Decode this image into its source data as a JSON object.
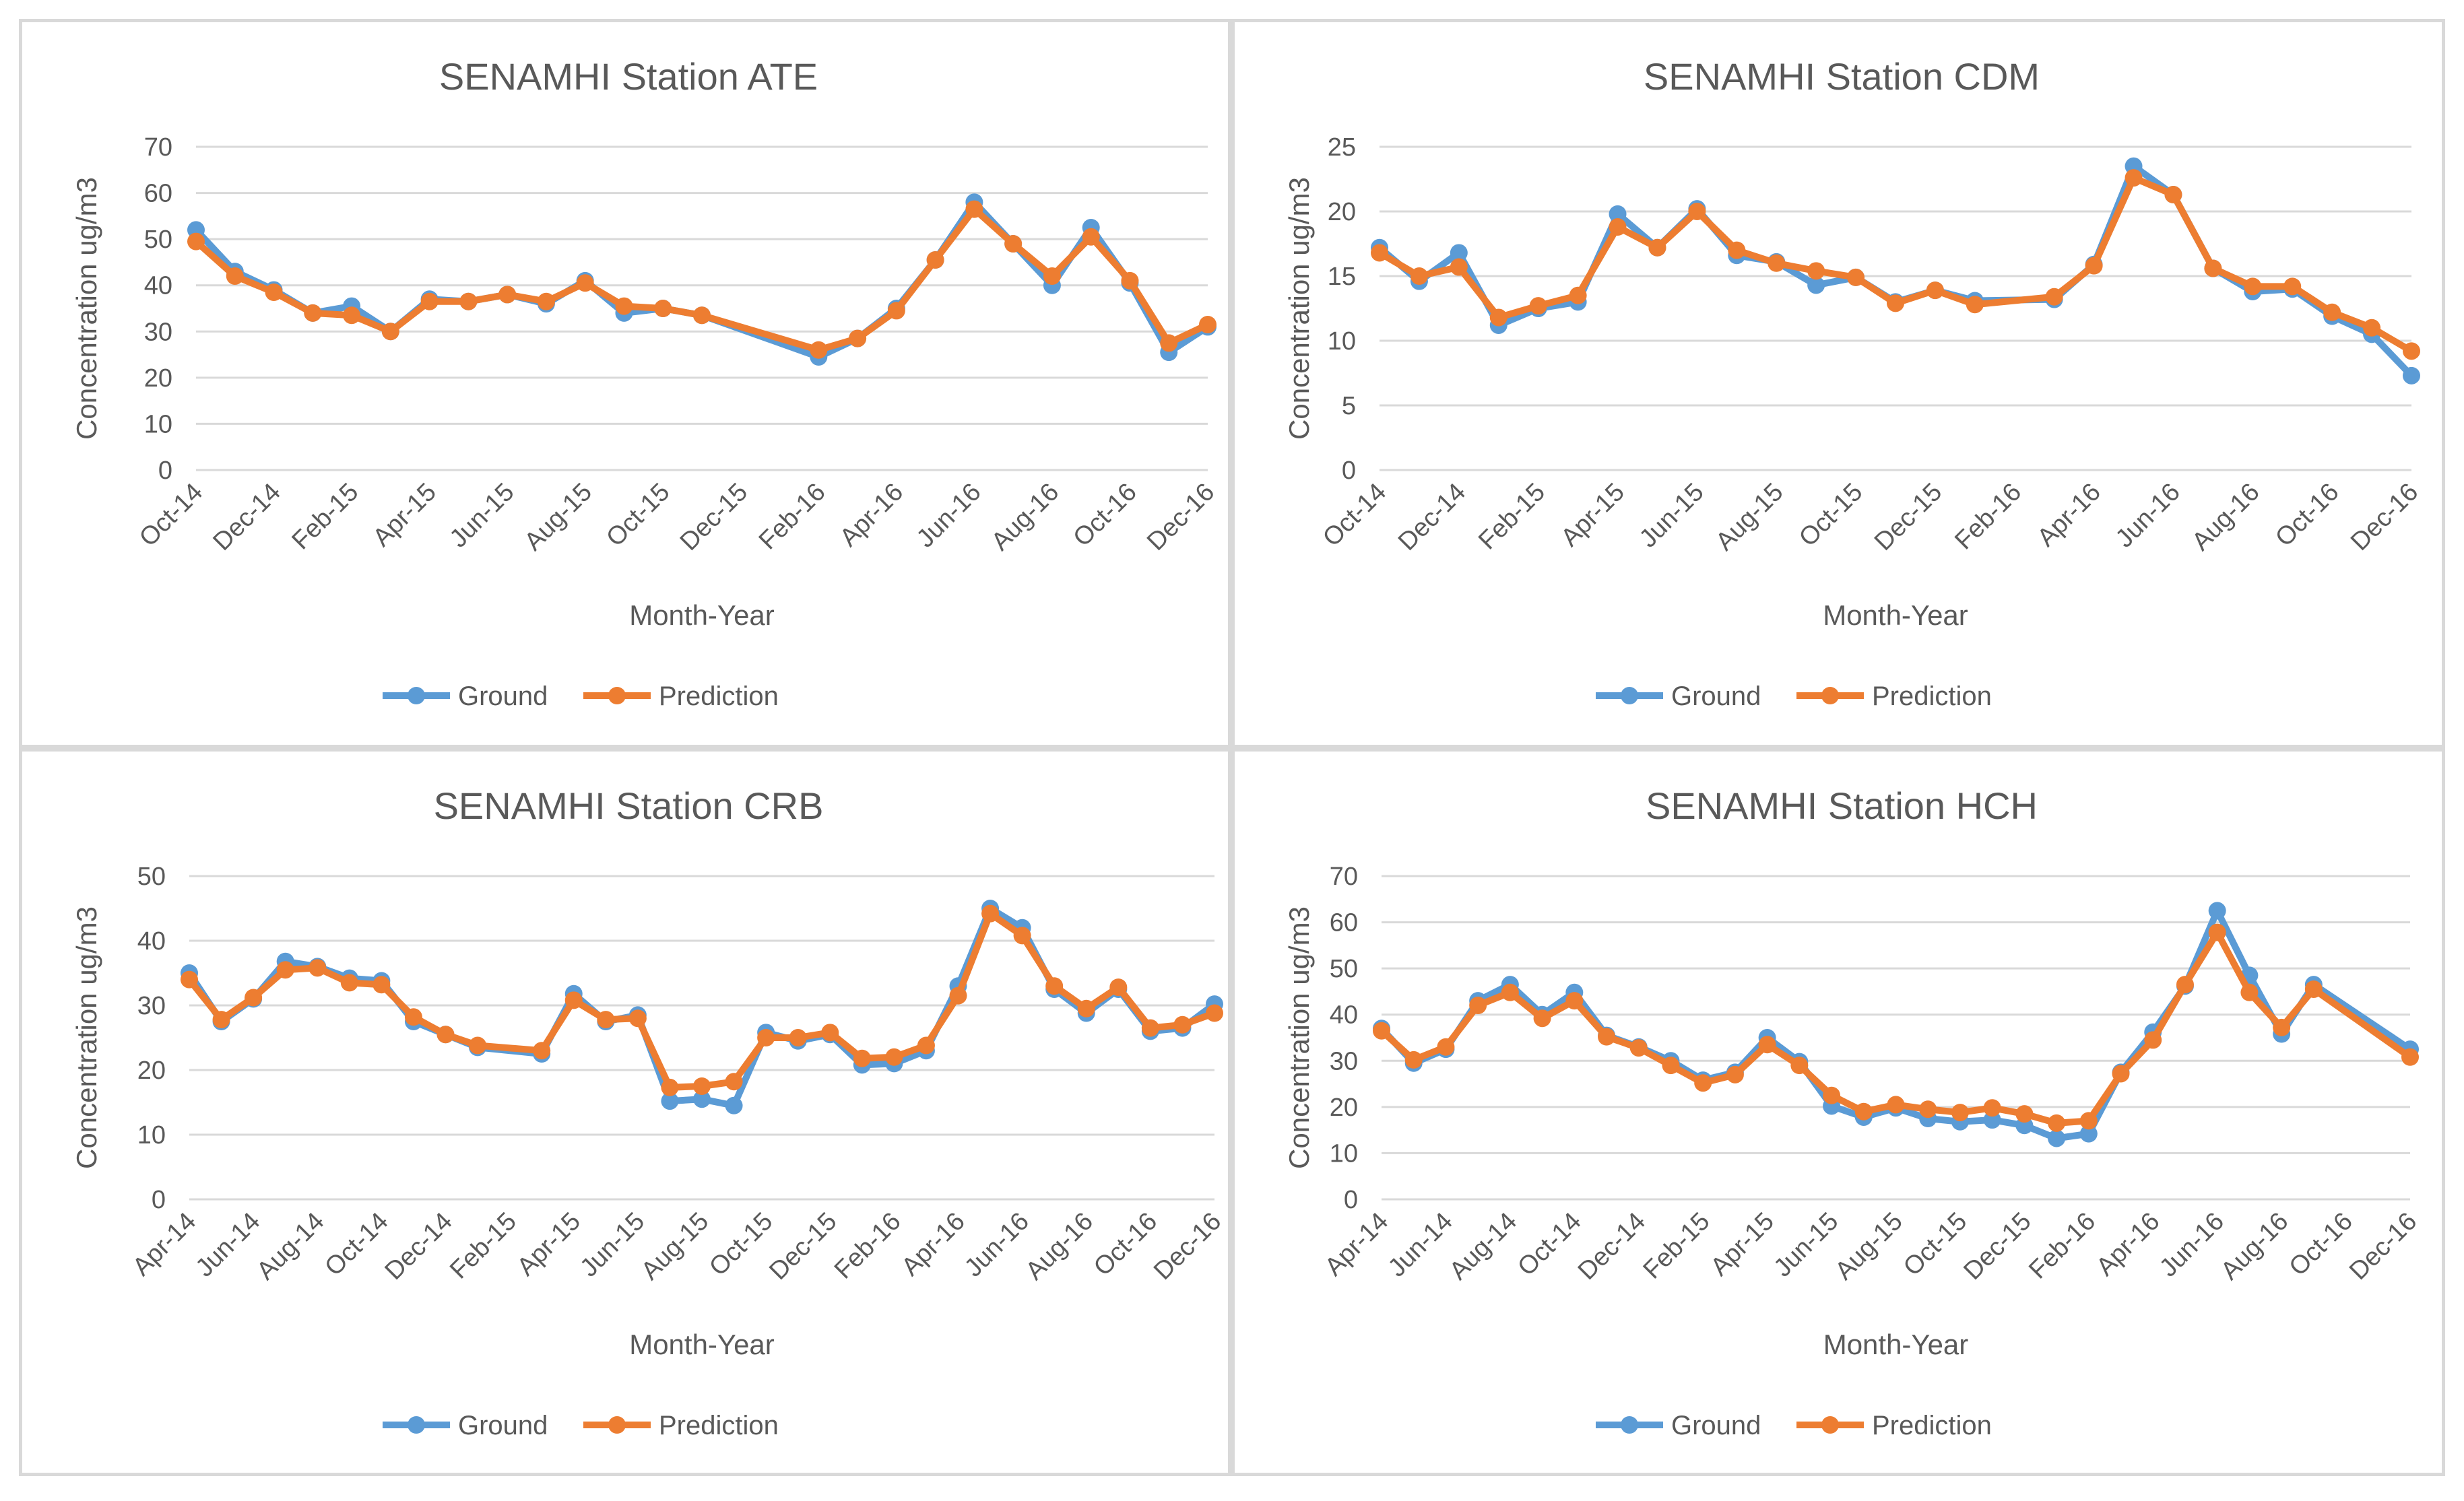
{
  "chart_data": [
    {
      "type": "line",
      "title": "SENAMHI Station ATE",
      "xlabel": "Month-Year",
      "ylabel": "Concentration ug/m3",
      "ylim": [
        0,
        70
      ],
      "yticks": [
        0,
        10,
        20,
        30,
        40,
        50,
        60,
        70
      ],
      "tick_labels": [
        "Oct-14",
        "Dec-14",
        "Feb-15",
        "Apr-15",
        "Jun-15",
        "Aug-15",
        "Oct-15",
        "Dec-15",
        "Feb-16",
        "Apr-16",
        "Jun-16",
        "Aug-16",
        "Oct-16",
        "Dec-16"
      ],
      "grid": true,
      "legend_position": "bottom",
      "x": [
        "Oct-14",
        "Nov-14",
        "Dec-14",
        "Jan-15",
        "Feb-15",
        "Mar-15",
        "Apr-15",
        "May-15",
        "Jun-15",
        "Jul-15",
        "Aug-15",
        "Sep-15",
        "Oct-15",
        "Nov-15",
        "Feb-16",
        "Mar-16",
        "Apr-16",
        "May-16",
        "Jun-16",
        "Jul-16",
        "Aug-16",
        "Sep-16",
        "Oct-16",
        "Nov-16",
        "Dec-16"
      ],
      "series": [
        {
          "name": "Ground",
          "color": "#5b9bd5",
          "values": [
            52,
            43,
            39,
            34,
            35.5,
            30,
            37,
            36.5,
            38,
            36,
            41,
            34,
            35,
            33.5,
            24.5,
            28.5,
            35,
            45.5,
            58,
            49,
            40,
            52.5,
            40.5,
            25.5,
            31
          ]
        },
        {
          "name": "Prediction",
          "color": "#ed7d31",
          "values": [
            49.5,
            42,
            38.5,
            34,
            33.5,
            30,
            36.5,
            36.5,
            38,
            36.5,
            40.5,
            35.5,
            35,
            33.5,
            26,
            28.5,
            34.5,
            45.5,
            56.5,
            49,
            42,
            50.5,
            41,
            27.5,
            31.5
          ]
        }
      ]
    },
    {
      "type": "line",
      "title": "SENAMHI Station CDM",
      "xlabel": "Month-Year",
      "ylabel": "Concentration ug/m3",
      "ylim": [
        0,
        25
      ],
      "yticks": [
        0,
        5,
        10,
        15,
        20,
        25
      ],
      "tick_labels": [
        "Oct-14",
        "Dec-14",
        "Feb-15",
        "Apr-15",
        "Jun-15",
        "Aug-15",
        "Oct-15",
        "Dec-15",
        "Feb-16",
        "Apr-16",
        "Jun-16",
        "Aug-16",
        "Oct-16",
        "Dec-16"
      ],
      "grid": true,
      "legend_position": "bottom",
      "x": [
        "Oct-14",
        "Nov-14",
        "Dec-14",
        "Jan-15",
        "Feb-15",
        "Mar-15",
        "Apr-15",
        "May-15",
        "Jun-15",
        "Jul-15",
        "Aug-15",
        "Sep-15",
        "Oct-15",
        "Nov-15",
        "Dec-15",
        "Jan-16",
        "Mar-16",
        "Apr-16",
        "May-16",
        "Jun-16",
        "Jul-16",
        "Aug-16",
        "Sep-16",
        "Oct-16",
        "Nov-16",
        "Dec-16"
      ],
      "series": [
        {
          "name": "Ground",
          "color": "#5b9bd5",
          "values": [
            17.2,
            14.6,
            16.8,
            11.2,
            12.5,
            13,
            19.8,
            17.2,
            20.2,
            16.6,
            16.1,
            14.3,
            14.9,
            13,
            13.9,
            13.1,
            13.2,
            15.9,
            23.5,
            21.3,
            15.6,
            13.8,
            14,
            11.9,
            10.5,
            7.3
          ]
        },
        {
          "name": "Prediction",
          "color": "#ed7d31",
          "values": [
            16.8,
            15,
            15.7,
            11.8,
            12.7,
            13.5,
            18.8,
            17.2,
            20,
            17,
            16,
            15.4,
            14.9,
            12.9,
            13.9,
            12.8,
            13.4,
            15.8,
            22.6,
            21.3,
            15.6,
            14.2,
            14.2,
            12.2,
            11,
            9.2
          ]
        }
      ]
    },
    {
      "type": "line",
      "title": "SENAMHI Station CRB",
      "xlabel": "Month-Year",
      "ylabel": "Concentration ug/m3",
      "ylim": [
        0,
        50
      ],
      "yticks": [
        0,
        10,
        20,
        30,
        40,
        50
      ],
      "tick_labels": [
        "Apr-14",
        "Jun-14",
        "Aug-14",
        "Oct-14",
        "Dec-14",
        "Feb-15",
        "Apr-15",
        "Jun-15",
        "Aug-15",
        "Oct-15",
        "Dec-15",
        "Feb-16",
        "Apr-16",
        "Jun-16",
        "Aug-16",
        "Oct-16",
        "Dec-16"
      ],
      "grid": true,
      "legend_position": "bottom",
      "x": [
        "Apr-14",
        "May-14",
        "Jun-14",
        "Jul-14",
        "Aug-14",
        "Sep-14",
        "Oct-14",
        "Nov-14",
        "Dec-14",
        "Jan-15",
        "Mar-15",
        "Apr-15",
        "May-15",
        "Jun-15",
        "Jul-15",
        "Aug-15",
        "Sep-15",
        "Oct-15",
        "Nov-15",
        "Dec-15",
        "Jan-16",
        "Feb-16",
        "Mar-16",
        "Apr-16",
        "May-16",
        "Jun-16",
        "Jul-16",
        "Aug-16",
        "Sep-16",
        "Oct-16",
        "Nov-16",
        "Dec-16"
      ],
      "series": [
        {
          "name": "Ground",
          "color": "#5b9bd5",
          "values": [
            35,
            27.5,
            31,
            36.8,
            36,
            34.2,
            33.8,
            27.5,
            25.5,
            23.5,
            22.5,
            31.8,
            27.5,
            28.5,
            15.2,
            15.5,
            14.5,
            25.8,
            24.5,
            25.5,
            20.8,
            21,
            23,
            33,
            45,
            42,
            32.5,
            28.8,
            32.5,
            26,
            26.5,
            30.2
          ]
        },
        {
          "name": "Prediction",
          "color": "#ed7d31",
          "values": [
            34,
            27.8,
            31.2,
            35.5,
            35.8,
            33.5,
            33.2,
            28.2,
            25.5,
            23.8,
            23,
            30.8,
            27.8,
            28,
            17.3,
            17.5,
            18.2,
            25,
            25,
            25.8,
            21.8,
            22,
            23.8,
            31.5,
            44.2,
            40.8,
            33,
            29.5,
            32.8,
            26.5,
            27,
            28.8
          ]
        }
      ]
    },
    {
      "type": "line",
      "title": "SENAMHI Station HCH",
      "xlabel": "Month-Year",
      "ylabel": "Concentration ug/m3",
      "ylim": [
        0,
        70
      ],
      "yticks": [
        0,
        10,
        20,
        30,
        40,
        50,
        60,
        70
      ],
      "tick_labels": [
        "Apr-14",
        "Jun-14",
        "Aug-14",
        "Oct-14",
        "Dec-14",
        "Feb-15",
        "Apr-15",
        "Jun-15",
        "Aug-15",
        "Oct-15",
        "Dec-15",
        "Feb-16",
        "Apr-16",
        "Jun-16",
        "Aug-16",
        "Oct-16",
        "Dec-16"
      ],
      "grid": true,
      "legend_position": "bottom",
      "x": [
        "Apr-14",
        "May-14",
        "Jun-14",
        "Jul-14",
        "Aug-14",
        "Sep-14",
        "Oct-14",
        "Nov-14",
        "Dec-14",
        "Jan-15",
        "Feb-15",
        "Mar-15",
        "Apr-15",
        "May-15",
        "Jun-15",
        "Jul-15",
        "Aug-15",
        "Sep-15",
        "Oct-15",
        "Nov-15",
        "Dec-15",
        "Jan-16",
        "Feb-16",
        "Mar-16",
        "Apr-16",
        "May-16",
        "Jun-16",
        "Jul-16",
        "Aug-16",
        "Sep-16",
        "Dec-16"
      ],
      "series": [
        {
          "name": "Ground",
          "color": "#5b9bd5",
          "values": [
            37,
            29.5,
            32.5,
            43,
            46.5,
            40,
            44.8,
            35.5,
            33,
            30,
            25.8,
            27.5,
            35,
            29.8,
            20.2,
            17.8,
            19.8,
            17.5,
            16.8,
            17.2,
            16,
            13.2,
            14.2,
            27.5,
            36.2,
            46.2,
            62.5,
            48.5,
            35.8,
            46.5,
            32.5
          ]
        },
        {
          "name": "Prediction",
          "color": "#ed7d31",
          "values": [
            36.5,
            30.2,
            33,
            42,
            44.8,
            39.2,
            43,
            35.2,
            32.8,
            29,
            25.2,
            27,
            33.5,
            29,
            22.5,
            19,
            20.5,
            19.5,
            18.8,
            19.8,
            18.5,
            16.5,
            17,
            27.2,
            34.5,
            46.5,
            57.8,
            44.8,
            37.2,
            45.5,
            30.8
          ]
        }
      ]
    }
  ]
}
